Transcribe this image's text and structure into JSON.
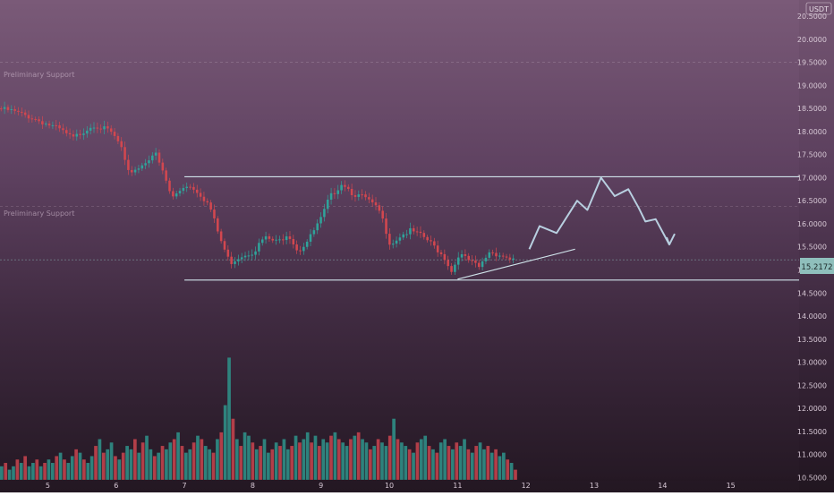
{
  "chart_data": {
    "type": "candlestick",
    "title": "",
    "currency_badge": "USDT",
    "price_axis": {
      "ticks": [
        "20.5000",
        "20.0000",
        "19.5000",
        "19.0000",
        "18.5000",
        "18.0000",
        "17.5000",
        "17.0000",
        "16.5000",
        "16.0000",
        "15.5000",
        "15.0000",
        "14.5000",
        "14.0000",
        "13.5000",
        "13.0000",
        "12.5000",
        "12.0000",
        "11.5000",
        "11.0000",
        "10.5000"
      ],
      "range": [
        10.45,
        20.85
      ]
    },
    "time_axis": {
      "ticks": [
        "5",
        "6",
        "7",
        "8",
        "9",
        "10",
        "11",
        "12",
        "13",
        "14",
        "15"
      ],
      "range": [
        4.3,
        16.0
      ]
    },
    "current_price_label": "15.2172",
    "current_price": 15.22,
    "labels": {
      "preliminary_support_upper": "Preliminary Support",
      "preliminary_support_lower": "Preliminary Support"
    },
    "levels": {
      "preliminary_support_upper": 19.5,
      "preliminary_support_lower": 16.38,
      "range_top": 17.02,
      "range_bottom": 14.78
    },
    "trendline": {
      "start": [
        11.0,
        14.8
      ],
      "end": [
        12.72,
        15.45
      ]
    },
    "projection_path": [
      [
        12.05,
        15.45
      ],
      [
        12.2,
        15.95
      ],
      [
        12.45,
        15.8
      ],
      [
        12.75,
        16.5
      ],
      [
        12.9,
        16.3
      ],
      [
        13.1,
        17.0
      ],
      [
        13.3,
        16.6
      ],
      [
        13.5,
        16.75
      ],
      [
        13.65,
        16.35
      ],
      [
        13.75,
        16.05
      ],
      [
        13.9,
        16.1
      ],
      [
        14.1,
        15.55
      ]
    ],
    "price_path": [
      [
        4.3,
        18.5
      ],
      [
        4.5,
        18.45
      ],
      [
        4.8,
        18.3
      ],
      [
        5.2,
        18.05
      ],
      [
        5.4,
        17.85
      ],
      [
        5.7,
        18.15
      ],
      [
        5.95,
        18.0
      ],
      [
        6.1,
        17.7
      ],
      [
        6.2,
        17.1
      ],
      [
        6.4,
        17.25
      ],
      [
        6.6,
        17.55
      ],
      [
        6.75,
        17.0
      ],
      [
        6.85,
        16.55
      ],
      [
        7.05,
        16.85
      ],
      [
        7.2,
        16.75
      ],
      [
        7.4,
        16.4
      ],
      [
        7.55,
        15.7
      ],
      [
        7.7,
        15.15
      ],
      [
        7.85,
        15.3
      ],
      [
        8.05,
        15.4
      ],
      [
        8.2,
        15.7
      ],
      [
        8.4,
        15.6
      ],
      [
        8.55,
        15.8
      ],
      [
        8.7,
        15.4
      ],
      [
        8.85,
        15.65
      ],
      [
        9.05,
        16.15
      ],
      [
        9.15,
        16.55
      ],
      [
        9.35,
        16.9
      ],
      [
        9.5,
        16.65
      ],
      [
        9.7,
        16.55
      ],
      [
        9.9,
        16.25
      ],
      [
        10.05,
        15.55
      ],
      [
        10.2,
        15.75
      ],
      [
        10.35,
        15.85
      ],
      [
        10.55,
        15.7
      ],
      [
        10.7,
        15.5
      ],
      [
        10.85,
        15.25
      ],
      [
        10.95,
        14.95
      ],
      [
        11.05,
        15.35
      ],
      [
        11.2,
        15.2
      ],
      [
        11.35,
        15.05
      ],
      [
        11.5,
        15.4
      ],
      [
        11.7,
        15.3
      ],
      [
        11.85,
        15.22
      ]
    ],
    "volume": {
      "start": 4.3,
      "end": 11.88,
      "values": [
        4,
        5,
        3,
        4,
        6,
        5,
        7,
        4,
        5,
        6,
        4,
        5,
        6,
        5,
        7,
        8,
        6,
        5,
        7,
        9,
        8,
        6,
        5,
        7,
        10,
        12,
        8,
        9,
        11,
        7,
        6,
        8,
        10,
        9,
        12,
        8,
        11,
        13,
        9,
        7,
        8,
        10,
        9,
        11,
        12,
        14,
        10,
        8,
        9,
        11,
        13,
        12,
        10,
        9,
        8,
        12,
        14,
        22,
        36,
        18,
        12,
        10,
        14,
        13,
        11,
        9,
        10,
        12,
        8,
        9,
        11,
        10,
        12,
        9,
        10,
        13,
        11,
        12,
        14,
        11,
        13,
        10,
        12,
        11,
        13,
        14,
        12,
        11,
        10,
        12,
        13,
        14,
        12,
        11,
        9,
        10,
        12,
        11,
        10,
        13,
        18,
        12,
        11,
        10,
        9,
        8,
        11,
        12,
        13,
        10,
        9,
        8,
        11,
        12,
        10,
        9,
        11,
        10,
        12,
        9,
        8,
        10,
        11,
        9,
        10,
        8,
        9,
        7,
        8,
        6,
        5,
        3
      ],
      "max_display": 13.1,
      "baseline": 10.45
    }
  }
}
